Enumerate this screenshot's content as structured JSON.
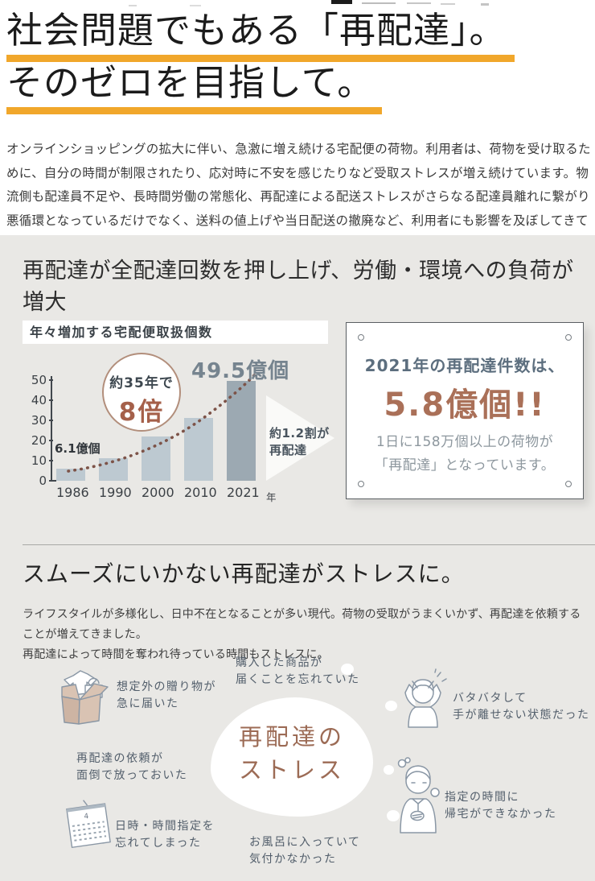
{
  "hero": {
    "title_line1": "社会問題でもある「再配達」。",
    "title_line2": "そのゼロを目指して。"
  },
  "intro": {
    "text": "オンラインショッピングの拡大に伴い、急激に増え続ける宅配便の荷物。利用者は、荷物を受け取るために、自分の時間が制限されたり、応対時に不安を感じたりなど受取ストレスが増え続けています。物流側も配達員不足や、長時間労働の常態化、再配達による配送ストレスがさらなる配達員離れに繋がり悪循環となっているだけでなく、送料の値上げや当日配送の撤廃など、利用者にも影響を及ぼしてきています。"
  },
  "section1": {
    "heading": "再配達が全配達回数を押し上げ、労働・環境への負荷が増大",
    "signboard": {
      "line1": "2021年の再配達件数は、",
      "big": "5.8億個!!",
      "desc": "1日に158万個以上の荷物が\n「再配達」となっています。"
    }
  },
  "chart_data": {
    "type": "bar",
    "title": "年々増加する宅配便取扱個数",
    "categories": [
      "1986",
      "1990",
      "2000",
      "2010",
      "2021"
    ],
    "values": [
      6.1,
      11,
      22,
      31,
      49.5
    ],
    "unit": "億個",
    "x_axis_suffix": "年",
    "ylim": [
      0,
      50
    ],
    "yticks": [
      0,
      10,
      20,
      30,
      40,
      50
    ],
    "grid": false,
    "legend": false,
    "annotations": {
      "first_bar_label": "6.1億個",
      "peak_label": "49.5億個",
      "badge_line1": "約35年で",
      "badge_line2": "8倍",
      "arrow_label": "約1.2割が\n再配達"
    },
    "colors": {
      "bar": "#BDC9D1",
      "bar_last": "#9CA9B2",
      "dotted_line": "#7D5348",
      "peak_label": "#76848F",
      "badge_accent": "#A5604A"
    }
  },
  "section2": {
    "heading": "スムーズにいかない再配達がストレスに。",
    "lead": "ライフスタイルが多様化し、日中不在となることが多い現代。荷物の受取がうまくいかず、再配達を依頼することが増えてきました。\n再配達によって時間を奪われ待っている時間もストレスに。",
    "center_bubble": "再配達の\nストレス",
    "scenarios": [
      {
        "label": "想定外の贈り物が\n急に届いた"
      },
      {
        "label": "購入した商品が\n届くことを忘れていた"
      },
      {
        "label": "バタバタして\n手が離せない状態だった"
      },
      {
        "label": "再配達の依頼が\n面倒で放っておいた"
      },
      {
        "label": "指定の時間に\n帰宅ができなかった"
      },
      {
        "label": "日時・時間指定を\n忘れてしまった",
        "icon_label": "4"
      },
      {
        "label": "お風呂に入っていて\n気付かなかった"
      }
    ]
  },
  "colors": {
    "accent_underline": "#F1A72B",
    "section_bg": "#E9E8E5",
    "line_art": "#8A97A5",
    "sign_title": "#5C6E7E",
    "sign_big": "#AA7058",
    "bubble_text": "#9C6B55"
  }
}
